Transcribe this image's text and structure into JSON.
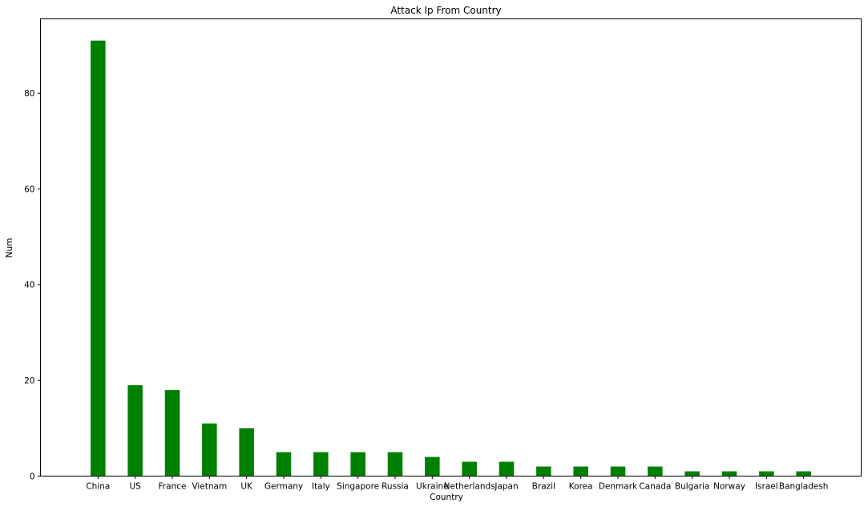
{
  "chart_data": {
    "type": "bar",
    "title": "Attack Ip From Country",
    "xlabel": "Country",
    "ylabel": "Num",
    "categories": [
      "China",
      "US",
      "France",
      "Vietnam",
      "UK",
      "Germany",
      "Italy",
      "Singapore",
      "Russia",
      "Ukraine",
      "Netherlands",
      "Japan",
      "Brazil",
      "Korea",
      "Denmark",
      "Canada",
      "Bulgaria",
      "Norway",
      "Israel",
      "Bangladesh"
    ],
    "values": [
      91,
      19,
      18,
      11,
      10,
      5,
      5,
      5,
      5,
      4,
      3,
      3,
      2,
      2,
      2,
      2,
      1,
      1,
      1,
      1
    ],
    "ylim": [
      0,
      95.55
    ],
    "yticks": [
      0,
      20,
      40,
      60,
      80
    ],
    "bar_color": "#008000",
    "grid": false,
    "legend": "none"
  }
}
